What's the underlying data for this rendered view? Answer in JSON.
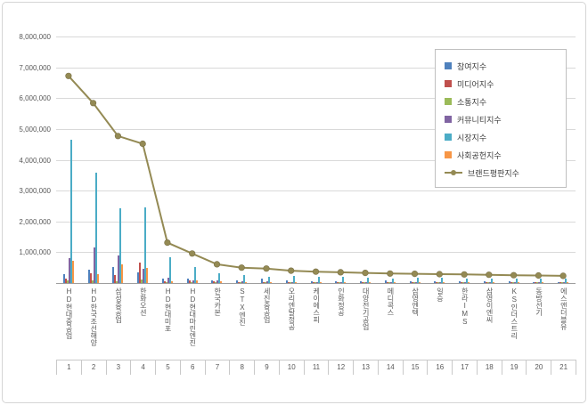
{
  "chart_data": {
    "type": "bar",
    "title": "",
    "grid": true,
    "legend_position": "top-right",
    "ylim": [
      0,
      8000000
    ],
    "ytick_interval": 1000000,
    "ytick_labels_top_down": [
      "8,000,000",
      "7,000,000",
      "6,000,000",
      "5,000,000",
      "4,000,000",
      "3,000,000",
      "2,000,000",
      "1,000,000"
    ],
    "categories": [
      "HD현대중공업",
      "HD한국조선해양",
      "삼성중공업",
      "한화오션",
      "HD현대미포",
      "HD현대마린엔진",
      "한국카본",
      "STX엔진",
      "세진중공업",
      "오리엔탈정공",
      "케이에스피",
      "인화정공",
      "대양전기공업",
      "메디콕스",
      "삼영엔텍",
      "일승",
      "한라IMS",
      "삼영이엔씨",
      "KS인더스트리",
      "동방선기",
      "에스앤더블유"
    ],
    "category_numbers": [
      "1",
      "2",
      "3",
      "4",
      "5",
      "6",
      "7",
      "8",
      "9",
      "10",
      "11",
      "12",
      "13",
      "14",
      "15",
      "16",
      "17",
      "18",
      "19",
      "20",
      "21"
    ],
    "series": [
      {
        "name": "참여지수",
        "type": "bar",
        "color": "#4F81BD",
        "values": [
          300000,
          420000,
          520000,
          350000,
          130000,
          150000,
          100000,
          80000,
          150000,
          80000,
          70000,
          60000,
          60000,
          80000,
          50000,
          50000,
          60000,
          50000,
          45000,
          40000,
          40000
        ]
      },
      {
        "name": "미디어지수",
        "type": "bar",
        "color": "#C0504D",
        "values": [
          150000,
          320000,
          260000,
          650000,
          60000,
          80000,
          50000,
          40000,
          40000,
          30000,
          30000,
          25000,
          25000,
          25000,
          25000,
          20000,
          20000,
          20000,
          18000,
          15000,
          15000
        ]
      },
      {
        "name": "소통지수",
        "type": "bar",
        "color": "#9BBB59",
        "values": [
          80000,
          80000,
          70000,
          120000,
          30000,
          40000,
          20000,
          15000,
          15000,
          10000,
          10000,
          10000,
          10000,
          10000,
          10000,
          8000,
          8000,
          8000,
          7000,
          6000,
          5000
        ]
      },
      {
        "name": "커뮤니티지수",
        "type": "bar",
        "color": "#8064A2",
        "values": [
          820000,
          1150000,
          900000,
          450000,
          180000,
          100000,
          80000,
          60000,
          50000,
          40000,
          40000,
          35000,
          30000,
          35000,
          30000,
          25000,
          25000,
          25000,
          22000,
          20000,
          20000
        ]
      },
      {
        "name": "시장지수",
        "type": "bar",
        "color": "#4BACC6",
        "values": [
          4650000,
          3570000,
          2420000,
          2450000,
          850000,
          510000,
          310000,
          270000,
          190000,
          220000,
          200000,
          200000,
          185000,
          140000,
          165000,
          170000,
          150000,
          150000,
          148000,
          150000,
          142000
        ]
      },
      {
        "name": "사회공헌지수",
        "type": "bar",
        "color": "#F79646",
        "values": [
          720000,
          300000,
          600000,
          500000,
          60000,
          80000,
          50000,
          35000,
          25000,
          20000,
          20000,
          20000,
          20000,
          20000,
          20000,
          17000,
          17000,
          17000,
          15000,
          14000,
          13000
        ]
      },
      {
        "name": "브랜드평판지수",
        "type": "line",
        "color": "#948A54",
        "values": [
          6720000,
          5840000,
          4770000,
          4520000,
          1310000,
          960000,
          610000,
          500000,
          470000,
          400000,
          370000,
          350000,
          330000,
          310000,
          300000,
          290000,
          280000,
          270000,
          255000,
          245000,
          235000
        ]
      }
    ]
  },
  "colors": {
    "grid": "#d9d9d9",
    "axis": "#9e9e9e",
    "tick_text": "#595959",
    "legend_border": "#bfbfbf"
  }
}
